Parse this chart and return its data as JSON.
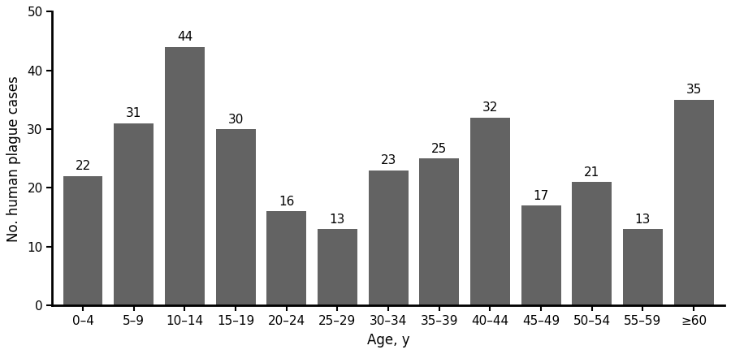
{
  "categories": [
    "0–4",
    "5–9",
    "10–14",
    "15–19",
    "20–24",
    "25–29",
    "30–34",
    "35–39",
    "40–44",
    "45–49",
    "50–54",
    "55–59",
    "≥60"
  ],
  "values": [
    22,
    31,
    44,
    30,
    16,
    13,
    23,
    25,
    32,
    17,
    21,
    13,
    35
  ],
  "bar_color": "#636363",
  "ylabel": "No. human plague cases",
  "xlabel": "Age, y",
  "ylim": [
    0,
    50
  ],
  "yticks": [
    0,
    10,
    20,
    30,
    40,
    50
  ],
  "label_fontsize": 12,
  "tick_fontsize": 11,
  "bar_label_fontsize": 11,
  "background_color": "#ffffff",
  "bar_width": 0.78
}
